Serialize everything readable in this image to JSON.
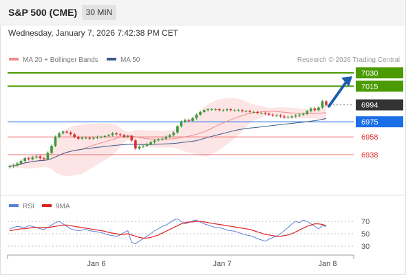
{
  "header": {
    "title": "S&P 500 (CME)",
    "timeframe": "30 MIN",
    "datetime": "Wednesday, January 7, 2026 7:42:38 PM CET"
  },
  "legend": {
    "ma20_label": "MA 20 + Bollinger Bands",
    "ma50_label": "MA 50",
    "credit": "Research © 2026 Trading Central",
    "ma20_color": "#f08a8a",
    "ma50_color": "#3a5a8c"
  },
  "rsi_legend": {
    "rsi_label": "RSI",
    "ma9_label": "9MA",
    "rsi_color": "#5a7fd6",
    "ma9_color": "#e02020"
  },
  "colors": {
    "target": "#4a9a00",
    "pivot": "#1a6ee6",
    "support": "#f07070",
    "current": "#333333",
    "arrow": "#1f5db0",
    "up_candle": "#3a9a3a",
    "down_candle": "#d83030"
  },
  "chart_data": {
    "type": "candlestick",
    "x_tick_labels": [
      "Jan 6",
      "Jan 7",
      "Jan 8"
    ],
    "ylim": [
      6923,
      7036
    ],
    "levels": [
      {
        "value": 7030,
        "label": "7030",
        "kind": "target"
      },
      {
        "value": 7015,
        "label": "7015",
        "kind": "target"
      },
      {
        "value": 6994,
        "label": "6994",
        "kind": "current"
      },
      {
        "value": 6975,
        "label": "6975",
        "kind": "pivot"
      },
      {
        "value": 6958,
        "label": "6958",
        "kind": "support"
      },
      {
        "value": 6938,
        "label": "6938",
        "kind": "support"
      }
    ],
    "closes": [
      6925,
      6926,
      6928,
      6931,
      6934,
      6933,
      6935,
      6936,
      6934,
      6933,
      6940,
      6948,
      6958,
      6962,
      6964,
      6963,
      6961,
      6958,
      6956,
      6957,
      6957,
      6956,
      6957,
      6958,
      6958,
      6959,
      6960,
      6962,
      6961,
      6960,
      6958,
      6959,
      6954,
      6945,
      6947,
      6948,
      6950,
      6952,
      6954,
      6955,
      6956,
      6958,
      6960,
      6963,
      6970,
      6975,
      6977,
      6976,
      6979,
      6983,
      6986,
      6988,
      6989,
      6989,
      6989,
      6988,
      6988,
      6989,
      6988,
      6988,
      6988,
      6987,
      6987,
      6986,
      6986,
      6985,
      6985,
      6984,
      6983,
      6982,
      6982,
      6981,
      6980,
      6980,
      6981,
      6982,
      6983,
      6984,
      6987,
      6990,
      6988,
      6991,
      6998,
      6994
    ],
    "rsi": {
      "ylim": [
        20,
        80
      ],
      "ticks": [
        70,
        50,
        30
      ],
      "rsi_values": [
        58,
        60,
        62,
        61,
        60,
        63,
        62,
        60,
        58,
        57,
        60,
        64,
        68,
        70,
        66,
        62,
        58,
        56,
        55,
        56,
        57,
        55,
        54,
        53,
        52,
        50,
        48,
        47,
        46,
        48,
        52,
        55,
        36,
        34,
        38,
        42,
        46,
        50,
        55,
        58,
        62,
        64,
        68,
        72,
        74,
        70,
        66,
        68,
        71,
        72,
        69,
        66,
        64,
        62,
        60,
        60,
        58,
        56,
        55,
        54,
        52,
        50,
        48,
        47,
        45,
        42,
        40,
        38,
        41,
        44,
        46,
        50,
        55,
        60,
        66,
        70,
        68,
        72,
        70,
        66,
        62,
        58,
        63,
        62
      ],
      "ma9_values": [
        55,
        56,
        57,
        58,
        58,
        59,
        60,
        60,
        60,
        60,
        60,
        61,
        62,
        63,
        64,
        64,
        63,
        62,
        61,
        60,
        59,
        58,
        57,
        56,
        55,
        54,
        52,
        51,
        50,
        49,
        49,
        50,
        48,
        46,
        44,
        43,
        43,
        44,
        46,
        48,
        51,
        54,
        57,
        60,
        63,
        66,
        68,
        69,
        69,
        70,
        70,
        69,
        68,
        67,
        66,
        65,
        64,
        63,
        62,
        61,
        60,
        59,
        58,
        57,
        55,
        53,
        51,
        49,
        48,
        47,
        46,
        46,
        47,
        48,
        50,
        53,
        56,
        59,
        62,
        64,
        66,
        66,
        65,
        63
      ]
    }
  }
}
